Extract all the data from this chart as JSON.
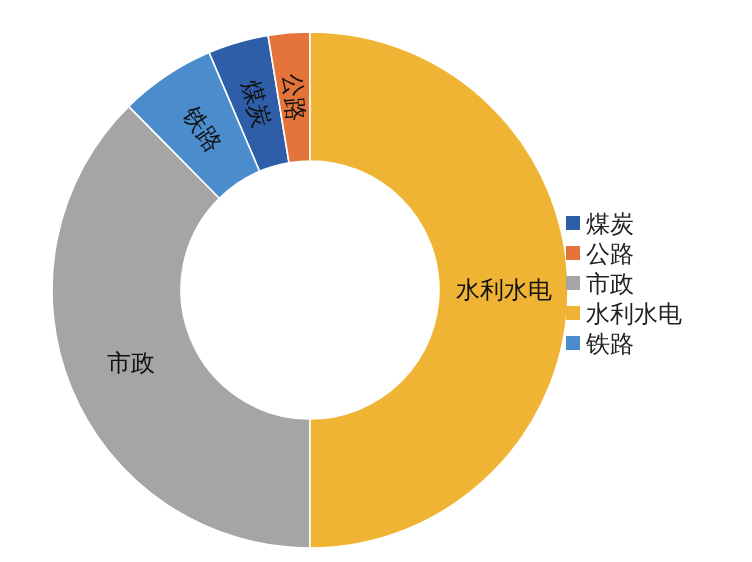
{
  "chart_data": {
    "type": "donut",
    "categories": [
      "煤炭",
      "公路",
      "市政",
      "水利水电",
      "铁路"
    ],
    "values": [
      3.8,
      2.6,
      37.6,
      50,
      6.0
    ],
    "colors": [
      "#2f5ea8",
      "#e4743a",
      "#a5a5a5",
      "#f0b434",
      "#4a8ccc"
    ],
    "legend": "right"
  }
}
